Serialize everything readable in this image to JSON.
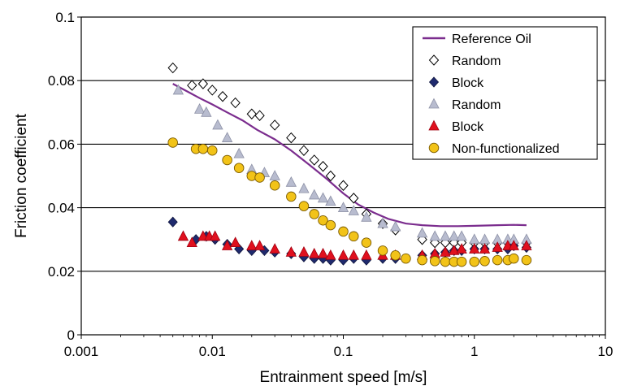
{
  "chart_data": {
    "type": "scatter",
    "title": "",
    "xlabel": "Entrainment speed [m/s]",
    "ylabel": "Friction coefficient",
    "xscale": "log",
    "xlim": [
      0.001,
      10
    ],
    "ylim": [
      0,
      0.1
    ],
    "x_ticks": [
      "0.001",
      "0.01",
      "0.1",
      "1",
      "10"
    ],
    "y_ticks": [
      "0",
      "0.02",
      "0.04",
      "0.06",
      "0.08",
      "0.1"
    ],
    "grid": "horizontal",
    "legend_position": "top-right",
    "series": [
      {
        "name": "Reference Oil",
        "kind": "line",
        "color": "#7b2d8e",
        "x": [
          0.005,
          0.0065,
          0.008,
          0.01,
          0.013,
          0.017,
          0.022,
          0.03,
          0.04,
          0.055,
          0.075,
          0.1,
          0.13,
          0.17,
          0.22,
          0.3,
          0.4,
          0.55,
          0.75,
          1.0,
          1.5,
          2.0,
          2.5
        ],
        "y": [
          0.079,
          0.0765,
          0.0745,
          0.0725,
          0.07,
          0.0675,
          0.0645,
          0.0615,
          0.058,
          0.0535,
          0.049,
          0.0445,
          0.041,
          0.0385,
          0.0365,
          0.035,
          0.0345,
          0.0342,
          0.0342,
          0.0343,
          0.0345,
          0.0346,
          0.0345
        ]
      },
      {
        "name": "Random",
        "marker": "diamond-open",
        "color": "#000000",
        "x": [
          0.005,
          0.007,
          0.0085,
          0.01,
          0.012,
          0.015,
          0.02,
          0.023,
          0.03,
          0.04,
          0.05,
          0.06,
          0.07,
          0.08,
          0.1,
          0.12,
          0.15,
          0.2,
          0.25,
          0.4,
          0.5,
          0.6,
          0.7,
          0.8,
          1.0,
          1.2,
          1.5,
          1.8,
          2.0,
          2.5
        ],
        "y": [
          0.084,
          0.0785,
          0.079,
          0.077,
          0.075,
          0.073,
          0.0695,
          0.069,
          0.066,
          0.062,
          0.058,
          0.055,
          0.053,
          0.05,
          0.047,
          0.043,
          0.038,
          0.035,
          0.033,
          0.03,
          0.029,
          0.029,
          0.029,
          0.029,
          0.029,
          0.029,
          0.029,
          0.029,
          0.029,
          0.029
        ]
      },
      {
        "name": "Block",
        "marker": "diamond-filled",
        "color": "#1f2a6e",
        "x": [
          0.005,
          0.0075,
          0.009,
          0.0105,
          0.013,
          0.016,
          0.02,
          0.025,
          0.03,
          0.04,
          0.05,
          0.06,
          0.07,
          0.08,
          0.1,
          0.12,
          0.15,
          0.2,
          0.25,
          0.4,
          0.5,
          0.6,
          0.7,
          0.8,
          1.0,
          1.2,
          1.5,
          1.8,
          2.0,
          2.5
        ],
        "y": [
          0.0355,
          0.03,
          0.031,
          0.03,
          0.0285,
          0.027,
          0.0265,
          0.0265,
          0.026,
          0.0255,
          0.0245,
          0.024,
          0.024,
          0.0235,
          0.0235,
          0.024,
          0.0235,
          0.024,
          0.024,
          0.025,
          0.0255,
          0.026,
          0.0265,
          0.0265,
          0.027,
          0.027,
          0.027,
          0.027,
          0.028,
          0.0275
        ]
      },
      {
        "name": "Random",
        "marker": "triangle-filled",
        "color": "#b8bccf",
        "x": [
          0.0055,
          0.008,
          0.009,
          0.011,
          0.013,
          0.016,
          0.02,
          0.025,
          0.03,
          0.04,
          0.05,
          0.06,
          0.07,
          0.08,
          0.1,
          0.12,
          0.15,
          0.2,
          0.25,
          0.4,
          0.5,
          0.6,
          0.7,
          0.8,
          1.0,
          1.2,
          1.5,
          1.8,
          2.0,
          2.5
        ],
        "y": [
          0.077,
          0.071,
          0.07,
          0.066,
          0.062,
          0.057,
          0.052,
          0.051,
          0.05,
          0.048,
          0.046,
          0.044,
          0.043,
          0.042,
          0.04,
          0.039,
          0.037,
          0.035,
          0.034,
          0.032,
          0.031,
          0.031,
          0.031,
          0.031,
          0.03,
          0.03,
          0.03,
          0.03,
          0.03,
          0.03
        ]
      },
      {
        "name": "Block",
        "marker": "triangle-filled",
        "color": "#e0101e",
        "x": [
          0.006,
          0.007,
          0.0085,
          0.0095,
          0.0105,
          0.013,
          0.015,
          0.02,
          0.023,
          0.03,
          0.04,
          0.05,
          0.06,
          0.07,
          0.08,
          0.1,
          0.12,
          0.15,
          0.2,
          0.25,
          0.4,
          0.5,
          0.6,
          0.7,
          0.8,
          1.0,
          1.2,
          1.5,
          1.8,
          2.0,
          2.5
        ],
        "y": [
          0.031,
          0.029,
          0.031,
          0.031,
          0.031,
          0.028,
          0.029,
          0.028,
          0.028,
          0.027,
          0.026,
          0.026,
          0.0255,
          0.0255,
          0.025,
          0.025,
          0.025,
          0.025,
          0.025,
          0.025,
          0.025,
          0.0255,
          0.026,
          0.0265,
          0.027,
          0.027,
          0.027,
          0.0275,
          0.028,
          0.028,
          0.028
        ]
      },
      {
        "name": "Non-functionalized",
        "marker": "circle-filled",
        "color": "#f2c318",
        "x": [
          0.005,
          0.0075,
          0.0085,
          0.01,
          0.013,
          0.016,
          0.02,
          0.023,
          0.03,
          0.04,
          0.05,
          0.06,
          0.07,
          0.08,
          0.1,
          0.12,
          0.15,
          0.2,
          0.25,
          0.3,
          0.4,
          0.5,
          0.6,
          0.7,
          0.8,
          1.0,
          1.2,
          1.5,
          1.8,
          2.0,
          2.5
        ],
        "y": [
          0.0605,
          0.0585,
          0.0585,
          0.058,
          0.055,
          0.0525,
          0.05,
          0.0495,
          0.047,
          0.0435,
          0.0405,
          0.038,
          0.036,
          0.0345,
          0.0325,
          0.031,
          0.029,
          0.0265,
          0.025,
          0.024,
          0.0235,
          0.0232,
          0.023,
          0.023,
          0.023,
          0.023,
          0.0232,
          0.0235,
          0.0235,
          0.024,
          0.0235
        ]
      }
    ]
  }
}
